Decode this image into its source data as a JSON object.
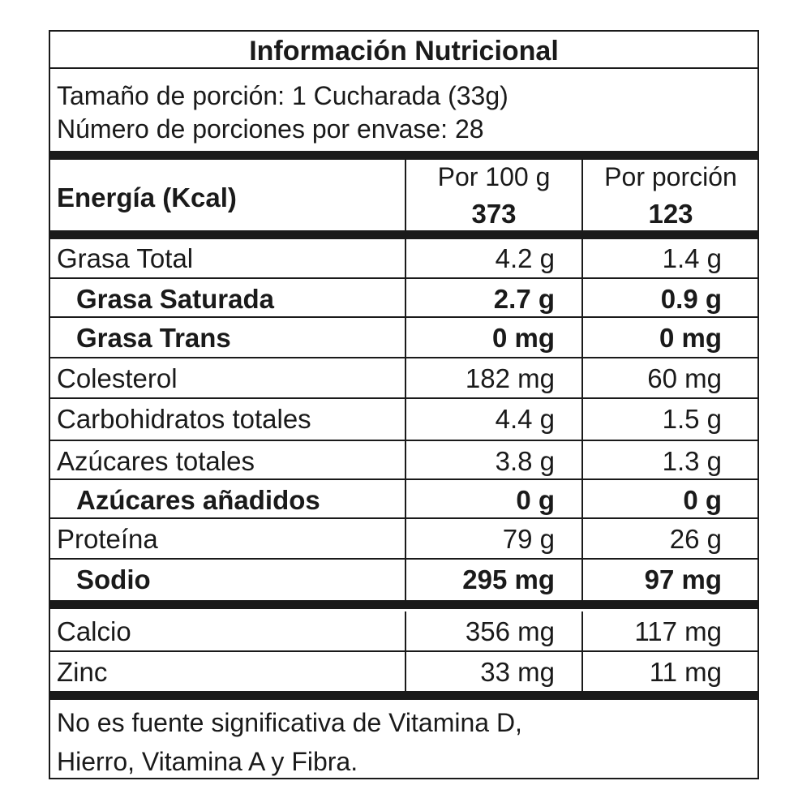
{
  "title": "Información Nutricional",
  "serving_size": "Tamaño de porción: 1 Cucharada (33g)",
  "servings_per_container": "Número de porciones por envase: 28",
  "energy": {
    "label": "Energía (Kcal)",
    "col1_header": "Por 100 g",
    "col2_header": "Por porción",
    "per_100g": "373",
    "per_serving": "123"
  },
  "nutrients": [
    {
      "name": "Grasa Total",
      "per_100g": "4.2 g",
      "per_serving": "1.4 g",
      "bold": false,
      "indent": false
    },
    {
      "name": "Grasa Saturada",
      "per_100g": "2.7 g",
      "per_serving": "0.9 g",
      "bold": true,
      "indent": true
    },
    {
      "name": "Grasa Trans",
      "per_100g": "0 mg",
      "per_serving": "0 mg",
      "bold": true,
      "indent": true
    },
    {
      "name": "Colesterol",
      "per_100g": "182 mg",
      "per_serving": "60 mg",
      "bold": false,
      "indent": false
    },
    {
      "name": "Carbohidratos totales",
      "per_100g": "4.4 g",
      "per_serving": "1.5 g",
      "bold": false,
      "indent": false
    },
    {
      "name": "Azúcares totales",
      "per_100g": "3.8 g",
      "per_serving": "1.3 g",
      "bold": false,
      "indent": false
    },
    {
      "name": "Azúcares añadidos",
      "per_100g": "0 g",
      "per_serving": "0 g",
      "bold": true,
      "indent": true
    },
    {
      "name": "Proteína",
      "per_100g": "79 g",
      "per_serving": "26 g",
      "bold": false,
      "indent": false
    },
    {
      "name": "Sodio",
      "per_100g": "295 mg",
      "per_serving": "97 mg",
      "bold": true,
      "indent": true
    }
  ],
  "minerals": [
    {
      "name": "Calcio",
      "per_100g": "356 mg",
      "per_serving": "117 mg"
    },
    {
      "name": "Zinc",
      "per_100g": "33 mg",
      "per_serving": "11 mg"
    }
  ],
  "footnote_line1": "No es fuente significativa de Vitamina D,",
  "footnote_line2": "Hierro, Vitamina A y Fibra."
}
